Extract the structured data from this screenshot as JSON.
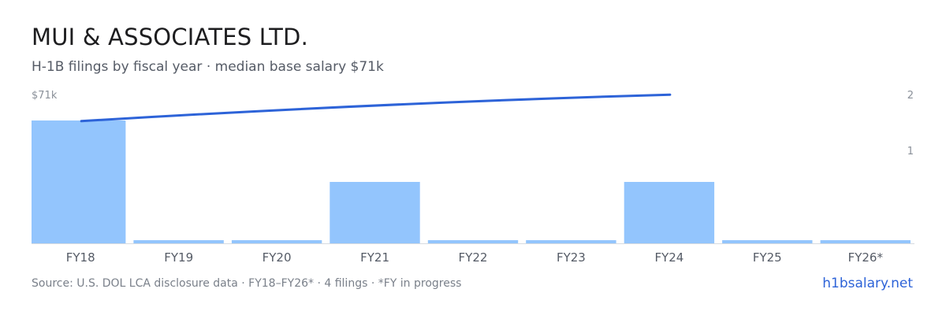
{
  "header": {
    "title": "MUI & ASSOCIATES LTD.",
    "subtitle": "H-1B filings by fiscal year · median base salary $71k"
  },
  "footer": {
    "source": "Source: U.S. DOL LCA disclosure data · FY18–FY26* · 4 filings · *FY in progress",
    "brand": "h1bsalary.net"
  },
  "colors": {
    "bar": "#93c5fd",
    "line": "#2d63d8",
    "axis": "#d7dbe0"
  },
  "chart_data": {
    "type": "bar",
    "categories": [
      "FY18",
      "FY19",
      "FY20",
      "FY21",
      "FY22",
      "FY23",
      "FY24",
      "FY25",
      "FY26*"
    ],
    "series": [
      {
        "values": [
          2,
          0,
          0,
          1,
          0,
          0,
          1,
          0,
          0
        ]
      }
    ],
    "line": {
      "start_category": "FY18",
      "end_category": "FY24",
      "start_level": 1.99,
      "end_level": 2.42
    },
    "y_right_ticks": [
      "2",
      "1"
    ],
    "y_left_label": "$71k",
    "ylim": [
      0,
      2.4
    ],
    "grid": false
  }
}
